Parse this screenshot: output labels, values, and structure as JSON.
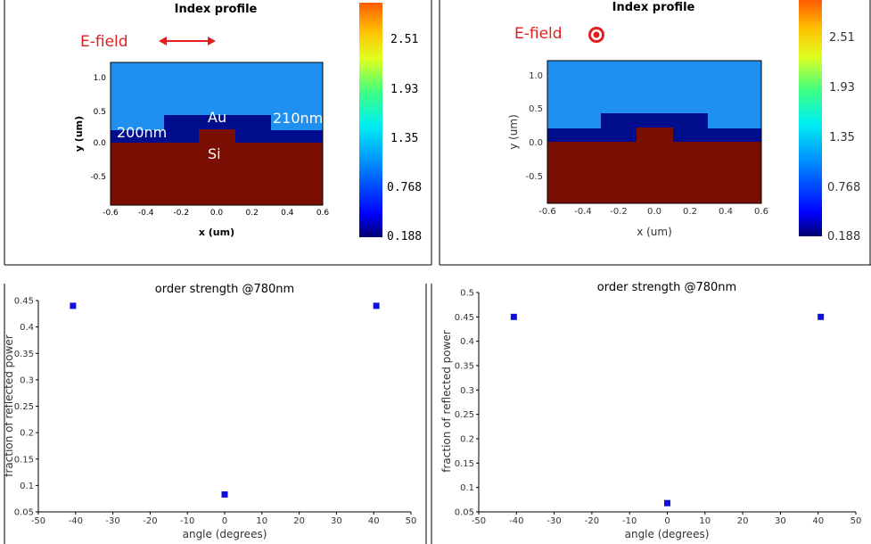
{
  "colors": {
    "air": "#1f8ff0",
    "au": "#000d8c",
    "si": "#7b0e03",
    "efield": "#e02020",
    "marker": "#1010dd",
    "colorbar_top": "#ff5a00",
    "colorbar_bottom": "#00006e"
  },
  "index_panels": [
    {
      "title": "Index profile",
      "efield_label": "E-field",
      "efield_symbol": "double-arrow-icon",
      "xlabel": "x (um)",
      "ylabel": "y (um)",
      "xticks": [
        "-0.6",
        "-0.4",
        "-0.2",
        "0.0",
        "0.2",
        "0.4",
        "0.6"
      ],
      "yticks": [
        "1.0",
        "0.5",
        "0.0",
        "-0.5"
      ],
      "labels": {
        "au": "Au",
        "si": "Si",
        "left_width": "200nm",
        "right_width": "210nm"
      },
      "colorbar_ticks": [
        "2.51",
        "1.93",
        "1.35",
        "0.768",
        "0.188"
      ]
    },
    {
      "title": "Index profile",
      "efield_label": "E-field",
      "efield_symbol": "target-icon",
      "xlabel": "x (um)",
      "ylabel": "y (um)",
      "xticks": [
        "-0.6",
        "-0.4",
        "-0.2",
        "0.0",
        "0.2",
        "0.4",
        "0.6"
      ],
      "yticks": [
        "1.0",
        "0.5",
        "0.0",
        "-0.5"
      ],
      "colorbar_ticks": [
        "2.51",
        "1.93",
        "1.35",
        "0.768",
        "0.188"
      ]
    }
  ],
  "chart_data": [
    {
      "type": "scatter",
      "title": "order strength @780nm",
      "xlabel": "angle (degrees)",
      "ylabel": "fraction of reflected power",
      "xlim": [
        -50,
        50
      ],
      "ylim": [
        0.05,
        0.45
      ],
      "xticks": [
        -50,
        -40,
        -30,
        -20,
        -10,
        0,
        10,
        20,
        30,
        40,
        50
      ],
      "yticks": [
        0.05,
        0.1,
        0.15,
        0.2,
        0.25,
        0.3,
        0.35,
        0.4,
        0.45
      ],
      "points": [
        {
          "x": -40.7,
          "y": 0.44
        },
        {
          "x": 0.0,
          "y": 0.083
        },
        {
          "x": 40.7,
          "y": 0.44
        }
      ]
    },
    {
      "type": "scatter",
      "title": "order strength @780nm",
      "xlabel": "angle (degrees)",
      "ylabel": "fraction of reflected power",
      "xlim": [
        -50,
        50
      ],
      "ylim": [
        0.05,
        0.5
      ],
      "xticks": [
        -50,
        -40,
        -30,
        -20,
        -10,
        0,
        10,
        20,
        30,
        40,
        50
      ],
      "yticks": [
        0.05,
        0.1,
        0.15,
        0.2,
        0.25,
        0.3,
        0.35,
        0.4,
        0.45,
        0.5
      ],
      "points": [
        {
          "x": -40.7,
          "y": 0.45
        },
        {
          "x": 0.0,
          "y": 0.068
        },
        {
          "x": 40.7,
          "y": 0.45
        }
      ]
    }
  ]
}
